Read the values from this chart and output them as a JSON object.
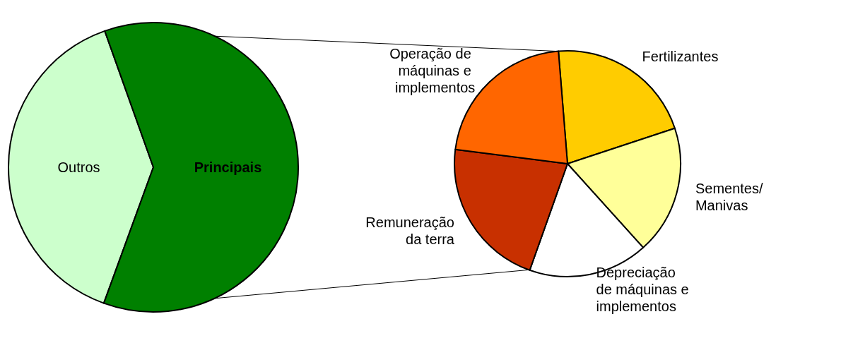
{
  "chart_data": [
    {
      "type": "pie",
      "categories": [
        "Outros",
        "Principais"
      ],
      "values": [
        39,
        61
      ],
      "colors": [
        "#ccffcc",
        "#008000"
      ]
    },
    {
      "type": "pie",
      "categories": [
        "Fertilizantes",
        "Sementes/Manivas",
        "Depreciação de máquinas e implementos",
        "Remuneração da terra",
        "Operação de máquinas e implementos"
      ],
      "values": [
        21.2,
        18.4,
        17.1,
        21.6,
        21.7
      ],
      "colors": [
        "#ffcc00",
        "#ffff99",
        "#ffffff",
        "#c83000",
        "#ff6600"
      ]
    }
  ]
}
